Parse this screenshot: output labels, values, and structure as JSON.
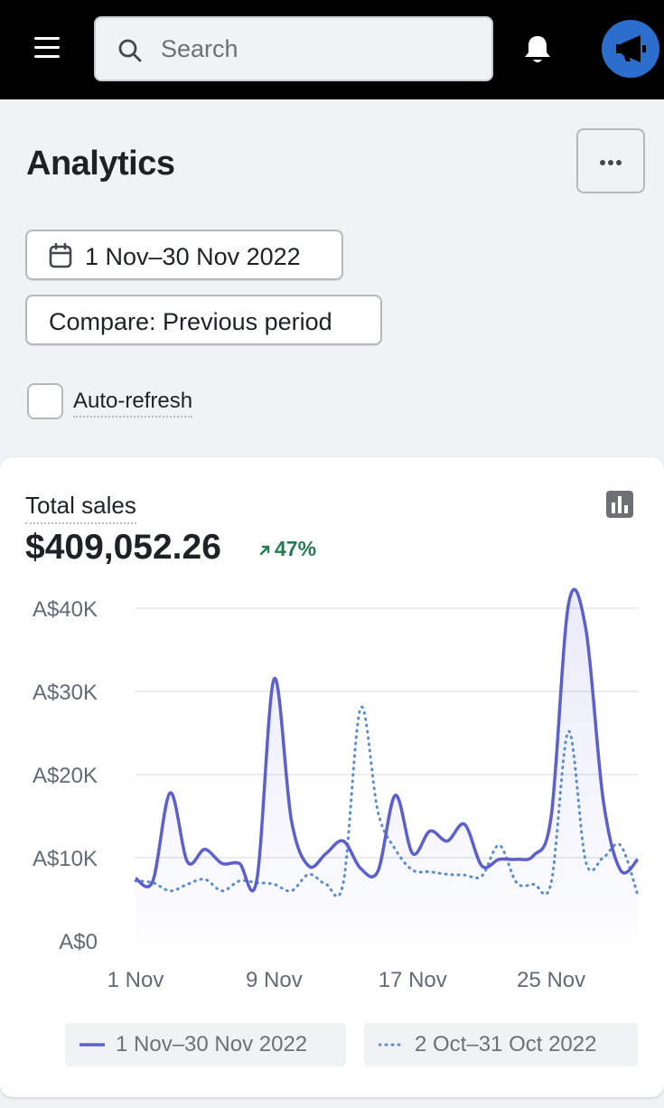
{
  "topbar": {
    "menu_icon": "hamburger-menu-icon",
    "search_placeholder": "Search",
    "bell_icon": "bell-icon",
    "avatar_icon": "megaphone-icon",
    "avatar_color": "#2c6ecb"
  },
  "header": {
    "title": "Analytics",
    "more_icon": "more-horizontal-icon"
  },
  "filters": {
    "date_range": "1 Nov–30 Nov 2022",
    "calendar_icon": "calendar-icon",
    "compare": "Compare: Previous period",
    "auto_refresh_label": "Auto-refresh",
    "auto_refresh_checked": false
  },
  "card": {
    "title": "Total sales",
    "total": "$409,052.26",
    "delta": "47%",
    "delta_icon": "arrow-up-right-icon",
    "delta_color": "#257a52",
    "chart_icon": "bar-chart-icon"
  },
  "chart_data": {
    "type": "line",
    "y_ticks": [
      "A$0",
      "A$10K",
      "A$20K",
      "A$30K",
      "A$40K"
    ],
    "x_ticks": [
      "1 Nov",
      "9 Nov",
      "17 Nov",
      "25 Nov"
    ],
    "ylim": [
      0,
      40000
    ],
    "grid": true,
    "legend_position": "bottom",
    "x_days": [
      1,
      2,
      3,
      4,
      5,
      6,
      7,
      8,
      9,
      10,
      11,
      12,
      13,
      14,
      15,
      16,
      17,
      18,
      19,
      20,
      21,
      22,
      23,
      24,
      25,
      26,
      27,
      28,
      29,
      30
    ],
    "series": [
      {
        "name": "1 Nov–30 Nov 2022",
        "style": "solid",
        "color": "#5c5fcf",
        "values": [
          7500,
          7200,
          17800,
          9500,
          11000,
          9300,
          9300,
          7300,
          31500,
          14500,
          9000,
          10500,
          12000,
          8700,
          8400,
          17500,
          10500,
          13200,
          12000,
          14000,
          9000,
          9800,
          9800,
          10300,
          15000,
          40500,
          37500,
          17000,
          8500,
          9800
        ]
      },
      {
        "name": "2 Oct–31 Oct 2022",
        "style": "dotted",
        "color": "#5b8ec9",
        "values": [
          7200,
          7000,
          6000,
          6800,
          7400,
          6000,
          7200,
          7000,
          6800,
          6000,
          8000,
          6800,
          7000,
          28000,
          15500,
          11000,
          8500,
          8300,
          8000,
          7900,
          7800,
          11500,
          7000,
          6800,
          7000,
          25200,
          9500,
          10000,
          11500,
          5500
        ]
      }
    ]
  }
}
